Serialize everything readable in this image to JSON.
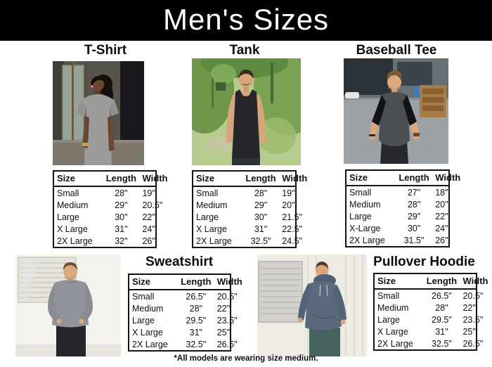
{
  "page": {
    "title": "Men's Sizes",
    "footnote": "*All models are wearing size medium."
  },
  "colors": {
    "header_bg": "#000000",
    "header_text": "#ffffff",
    "table_border": "#131313",
    "tshirt_gray": "#9c9c9a",
    "tank_black": "#26262b",
    "baseball_body": "#4b4e52",
    "baseball_sleeves": "#131317",
    "sweatshirt_gray": "#91949a",
    "hoodie_slate": "#586a7c"
  },
  "sections": [
    {
      "label": "T-Shirt",
      "photo_alt": "man wearing gray t-shirt in front of industrial building",
      "headers": [
        "Size",
        "Length",
        "Width"
      ],
      "rows": [
        [
          "Small",
          "28\"",
          "19\""
        ],
        [
          "Medium",
          "29\"",
          "20.5\""
        ],
        [
          "Large",
          "30\"",
          "22\""
        ],
        [
          "X Large",
          "31\"",
          "24\""
        ],
        [
          "2X Large",
          "32\"",
          "26\""
        ]
      ]
    },
    {
      "label": "Tank",
      "photo_alt": "man wearing black tank top on wooded trail",
      "headers": [
        "Size",
        "Length",
        "Width"
      ],
      "rows": [
        [
          "Small",
          "28\"",
          "19\""
        ],
        [
          "Medium",
          "29\"",
          "20\""
        ],
        [
          "Large",
          "30\"",
          "21.5\""
        ],
        [
          "X Large",
          "31\"",
          "22.5\""
        ],
        [
          "2X Large",
          "32.5\"",
          "24.5\""
        ]
      ]
    },
    {
      "label": "Baseball Tee",
      "photo_alt": "man wearing charcoal raglan baseball tee with black sleeves in parking lot",
      "headers": [
        "Size",
        "Length",
        "Width"
      ],
      "rows": [
        [
          "Small",
          "27\"",
          "18\""
        ],
        [
          "Medium",
          "28\"",
          "20\""
        ],
        [
          "Large",
          "29\"",
          "22\""
        ],
        [
          "X-Large",
          "30\"",
          "24\""
        ],
        [
          "2X Large",
          "31.5\"",
          "26\""
        ]
      ]
    },
    {
      "label": "Sweatshirt",
      "photo_alt": "man wearing gray crewneck sweatshirt in front of white building",
      "headers": [
        "Size",
        "Length",
        "Width"
      ],
      "rows": [
        [
          "Small",
          "26.5\"",
          "20.5\""
        ],
        [
          "Medium",
          "28\"",
          "22\""
        ],
        [
          "Large",
          "29.5\"",
          "23.5\""
        ],
        [
          "X Large",
          "31\"",
          "25\""
        ],
        [
          "2X Large",
          "32.5\"",
          "26.5\""
        ]
      ]
    },
    {
      "label": "Pullover Hoodie",
      "photo_alt": "man wearing slate blue pullover hoodie leaning on white wall",
      "headers": [
        "Size",
        "Length",
        "Width"
      ],
      "rows": [
        [
          "Small",
          "26.5\"",
          "20.5\""
        ],
        [
          "Medium",
          "28\"",
          "22\""
        ],
        [
          "Large",
          "29.5\"",
          "23.5\""
        ],
        [
          "X Large",
          "31\"",
          "25\""
        ],
        [
          "2X Large",
          "32.5\"",
          "26.5\""
        ]
      ]
    }
  ]
}
